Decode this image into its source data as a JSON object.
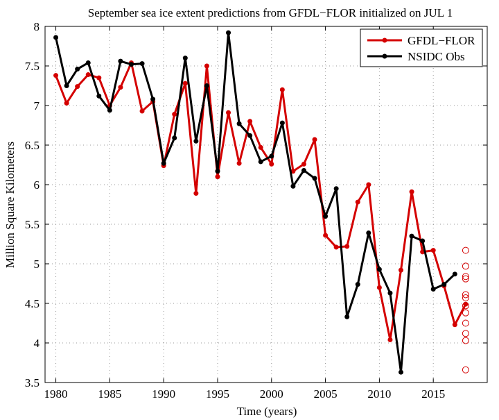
{
  "chart_data": {
    "type": "line",
    "title": "September sea ice extent predictions from GFDL−FLOR initialized on JUL 1",
    "xlabel": "Time (years)",
    "ylabel": "Million Square Kilometers",
    "xlim": [
      1979,
      2020
    ],
    "ylim": [
      3.5,
      8
    ],
    "xticks": [
      1980,
      1985,
      1990,
      1995,
      2000,
      2005,
      2010,
      2015
    ],
    "yticks": [
      3.5,
      4,
      4.5,
      5,
      5.5,
      6,
      6.5,
      7,
      7.5,
      8
    ],
    "grid": true,
    "legend_position": "top-right",
    "series": [
      {
        "name": "GFDL−FLOR",
        "color": "#d40000",
        "x": [
          1980,
          1981,
          1982,
          1983,
          1984,
          1985,
          1986,
          1987,
          1988,
          1989,
          1990,
          1991,
          1992,
          1993,
          1994,
          1995,
          1996,
          1997,
          1998,
          1999,
          2000,
          2001,
          2002,
          2003,
          2004,
          2005,
          2006,
          2007,
          2008,
          2009,
          2010,
          2011,
          2012,
          2013,
          2014,
          2015,
          2016,
          2017,
          2018
        ],
        "y": [
          7.38,
          7.03,
          7.24,
          7.39,
          7.35,
          7.0,
          7.23,
          7.54,
          6.93,
          7.05,
          6.24,
          6.89,
          7.28,
          5.89,
          7.5,
          6.1,
          6.91,
          6.27,
          6.8,
          6.47,
          6.26,
          7.2,
          6.17,
          6.26,
          6.57,
          5.36,
          5.21,
          5.22,
          5.78,
          6.0,
          4.7,
          4.04,
          4.92,
          5.91,
          5.15,
          5.17,
          4.72,
          4.23,
          4.49
        ]
      },
      {
        "name": "NSIDC Obs",
        "color": "#000000",
        "x": [
          1980,
          1981,
          1982,
          1983,
          1984,
          1985,
          1986,
          1987,
          1988,
          1989,
          1990,
          1991,
          1992,
          1993,
          1994,
          1995,
          1996,
          1997,
          1998,
          1999,
          2000,
          2001,
          2002,
          2003,
          2004,
          2005,
          2006,
          2007,
          2008,
          2009,
          2010,
          2011,
          2012,
          2013,
          2014,
          2015,
          2016,
          2017
        ],
        "y": [
          7.86,
          7.25,
          7.46,
          7.54,
          7.12,
          6.94,
          7.56,
          7.52,
          7.53,
          7.08,
          6.27,
          6.59,
          7.6,
          6.55,
          7.25,
          6.17,
          7.92,
          6.77,
          6.62,
          6.29,
          6.36,
          6.78,
          5.98,
          6.18,
          6.08,
          5.6,
          5.95,
          4.33,
          4.74,
          5.39,
          4.93,
          4.63,
          3.63,
          5.35,
          5.29,
          4.68,
          4.74,
          4.87
        ]
      },
      {
        "name": "",
        "type": "scatter",
        "marker": "open-circle",
        "color": "#d40000",
        "x": [
          2018,
          2018,
          2018,
          2018,
          2018,
          2018,
          2018,
          2018,
          2018,
          2018,
          2018,
          2018
        ],
        "y": [
          5.17,
          4.97,
          4.84,
          4.81,
          4.61,
          4.57,
          4.47,
          4.38,
          4.25,
          4.12,
          4.03,
          3.66
        ]
      }
    ]
  }
}
